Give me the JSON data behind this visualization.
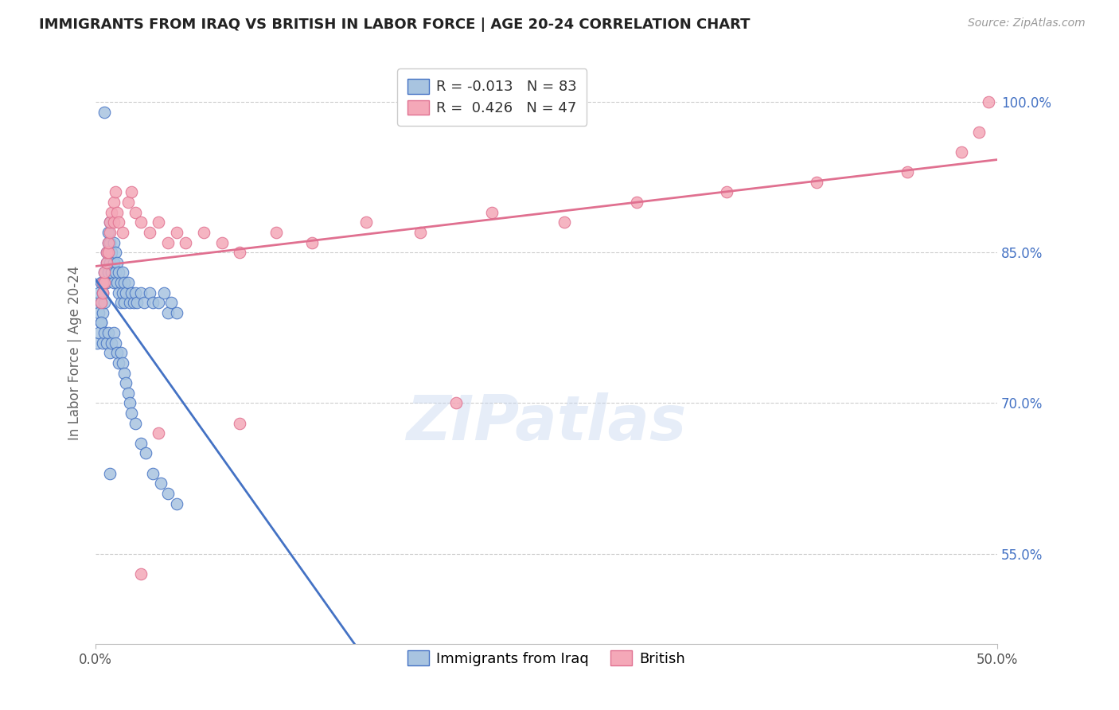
{
  "title": "IMMIGRANTS FROM IRAQ VS BRITISH IN LABOR FORCE | AGE 20-24 CORRELATION CHART",
  "source": "Source: ZipAtlas.com",
  "ylabel": "In Labor Force | Age 20-24",
  "ytick_labels": [
    "100.0%",
    "85.0%",
    "70.0%",
    "55.0%"
  ],
  "ytick_values": [
    1.0,
    0.85,
    0.7,
    0.55
  ],
  "xlim": [
    0.0,
    0.5
  ],
  "ylim": [
    0.46,
    1.04
  ],
  "legend_r_iraq": "-0.013",
  "legend_n_iraq": "83",
  "legend_r_british": "0.426",
  "legend_n_british": "47",
  "iraq_color": "#a8c4e0",
  "british_color": "#f4a8b8",
  "iraq_line_color": "#4472c4",
  "british_line_color": "#e07090",
  "watermark": "ZIPatlas",
  "iraq_x": [
    0.001,
    0.002,
    0.002,
    0.003,
    0.003,
    0.003,
    0.004,
    0.004,
    0.004,
    0.005,
    0.005,
    0.005,
    0.006,
    0.006,
    0.006,
    0.007,
    0.007,
    0.007,
    0.008,
    0.008,
    0.008,
    0.009,
    0.009,
    0.01,
    0.01,
    0.01,
    0.011,
    0.011,
    0.012,
    0.012,
    0.013,
    0.013,
    0.014,
    0.014,
    0.015,
    0.015,
    0.016,
    0.016,
    0.017,
    0.018,
    0.019,
    0.02,
    0.021,
    0.022,
    0.023,
    0.025,
    0.027,
    0.03,
    0.032,
    0.035,
    0.038,
    0.04,
    0.042,
    0.045,
    0.001,
    0.002,
    0.003,
    0.004,
    0.005,
    0.006,
    0.007,
    0.008,
    0.009,
    0.01,
    0.011,
    0.012,
    0.013,
    0.014,
    0.015,
    0.016,
    0.017,
    0.018,
    0.019,
    0.02,
    0.022,
    0.025,
    0.028,
    0.032,
    0.036,
    0.04,
    0.045,
    0.005,
    0.008
  ],
  "iraq_y": [
    0.8,
    0.79,
    0.81,
    0.82,
    0.8,
    0.78,
    0.82,
    0.81,
    0.79,
    0.83,
    0.82,
    0.8,
    0.85,
    0.84,
    0.82,
    0.87,
    0.86,
    0.83,
    0.88,
    0.86,
    0.84,
    0.85,
    0.83,
    0.86,
    0.84,
    0.82,
    0.85,
    0.83,
    0.84,
    0.82,
    0.83,
    0.81,
    0.82,
    0.8,
    0.83,
    0.81,
    0.82,
    0.8,
    0.81,
    0.82,
    0.8,
    0.81,
    0.8,
    0.81,
    0.8,
    0.81,
    0.8,
    0.81,
    0.8,
    0.8,
    0.81,
    0.79,
    0.8,
    0.79,
    0.76,
    0.77,
    0.78,
    0.76,
    0.77,
    0.76,
    0.77,
    0.75,
    0.76,
    0.77,
    0.76,
    0.75,
    0.74,
    0.75,
    0.74,
    0.73,
    0.72,
    0.71,
    0.7,
    0.69,
    0.68,
    0.66,
    0.65,
    0.63,
    0.62,
    0.61,
    0.6,
    0.99,
    0.63
  ],
  "british_x": [
    0.003,
    0.004,
    0.004,
    0.005,
    0.005,
    0.006,
    0.006,
    0.007,
    0.007,
    0.008,
    0.008,
    0.009,
    0.01,
    0.01,
    0.011,
    0.012,
    0.013,
    0.015,
    0.018,
    0.02,
    0.022,
    0.025,
    0.03,
    0.035,
    0.04,
    0.045,
    0.05,
    0.06,
    0.07,
    0.08,
    0.1,
    0.12,
    0.15,
    0.18,
    0.22,
    0.26,
    0.3,
    0.35,
    0.4,
    0.45,
    0.48,
    0.49,
    0.495,
    0.025,
    0.035,
    0.08,
    0.2
  ],
  "british_y": [
    0.8,
    0.81,
    0.82,
    0.82,
    0.83,
    0.84,
    0.85,
    0.85,
    0.86,
    0.87,
    0.88,
    0.89,
    0.88,
    0.9,
    0.91,
    0.89,
    0.88,
    0.87,
    0.9,
    0.91,
    0.89,
    0.88,
    0.87,
    0.88,
    0.86,
    0.87,
    0.86,
    0.87,
    0.86,
    0.85,
    0.87,
    0.86,
    0.88,
    0.87,
    0.89,
    0.88,
    0.9,
    0.91,
    0.92,
    0.93,
    0.95,
    0.97,
    1.0,
    0.53,
    0.67,
    0.68,
    0.7
  ]
}
